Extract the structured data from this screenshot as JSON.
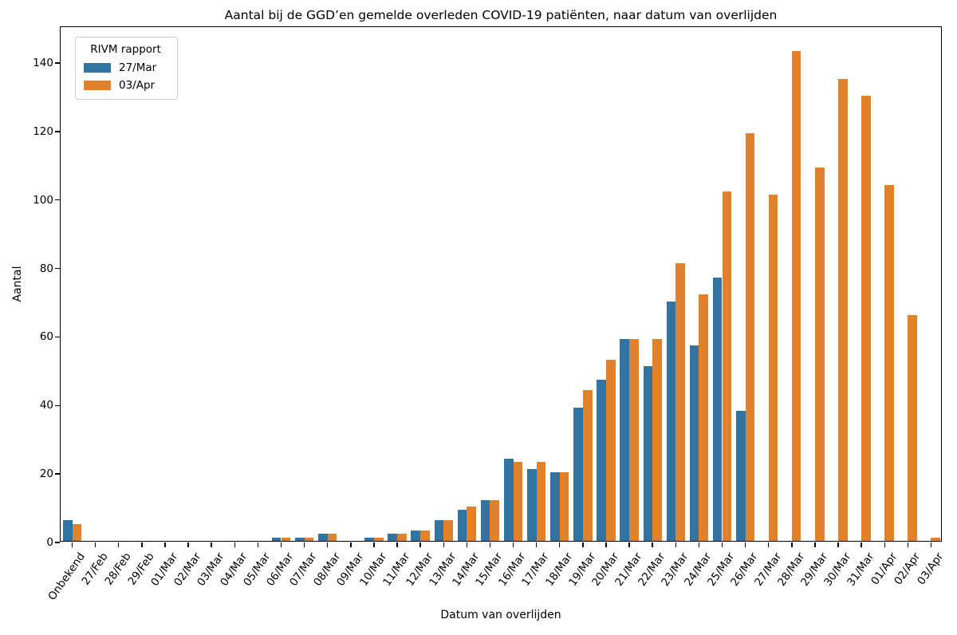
{
  "chart_data": {
    "type": "bar",
    "title": "Aantal bij de GGD’en gemelde overleden COVID-19 patiënten, naar datum van overlijden",
    "xlabel": "Datum van overlijden",
    "ylabel": "Aantal",
    "legend": {
      "title": "RIVM rapport",
      "position": "upper left"
    },
    "categories": [
      "Onbekend",
      "27/Feb",
      "28/Feb",
      "29/Feb",
      "01/Mar",
      "02/Mar",
      "03/Mar",
      "04/Mar",
      "05/Mar",
      "06/Mar",
      "07/Mar",
      "08/Mar",
      "09/Mar",
      "10/Mar",
      "11/Mar",
      "12/Mar",
      "13/Mar",
      "14/Mar",
      "15/Mar",
      "16/Mar",
      "17/Mar",
      "18/Mar",
      "19/Mar",
      "20/Mar",
      "21/Mar",
      "22/Mar",
      "23/Mar",
      "24/Mar",
      "25/Mar",
      "26/Mar",
      "27/Mar",
      "28/Mar",
      "29/Mar",
      "30/Mar",
      "31/Mar",
      "01/Apr",
      "02/Apr",
      "03/Apr"
    ],
    "series": [
      {
        "name": "27/Mar",
        "color": "#3274a1",
        "values": [
          6,
          0,
          0,
          0,
          0,
          0,
          0,
          0,
          0,
          1,
          1,
          2,
          0,
          1,
          2,
          3,
          6,
          9,
          12,
          24,
          21,
          20,
          39,
          47,
          59,
          51,
          70,
          57,
          77,
          38,
          0,
          0,
          0,
          0,
          0,
          0,
          0,
          0
        ]
      },
      {
        "name": "03/Apr",
        "color": "#e1812c",
        "values": [
          5,
          0,
          0,
          0,
          0,
          0,
          0,
          0,
          0,
          1,
          1,
          2,
          0,
          1,
          2,
          3,
          6,
          10,
          12,
          23,
          23,
          20,
          44,
          53,
          59,
          59,
          81,
          72,
          102,
          119,
          101,
          143,
          109,
          135,
          130,
          104,
          66,
          1
        ]
      }
    ],
    "yticks": [
      0,
      20,
      40,
      60,
      80,
      100,
      120,
      140
    ],
    "ylim": [
      0,
      150.5
    ],
    "grid": false,
    "x_tick_rotation": 55,
    "bar_group_width_frac": 0.8
  }
}
